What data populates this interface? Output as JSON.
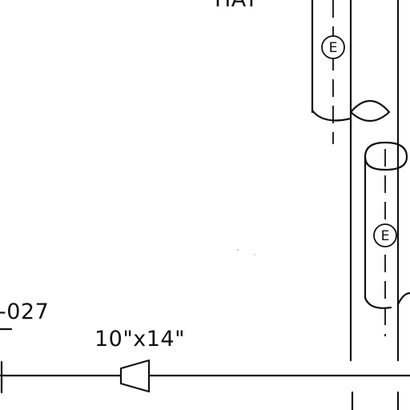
{
  "drawing": {
    "top_label": "HAY",
    "line_tag_suffix": "-027",
    "reducer_size": "10\"x14\"",
    "pipe_upper_tag": "E",
    "pipe_lower_tag": "E"
  },
  "colors": {
    "ink": "#111111",
    "paper": "#ffffff"
  }
}
